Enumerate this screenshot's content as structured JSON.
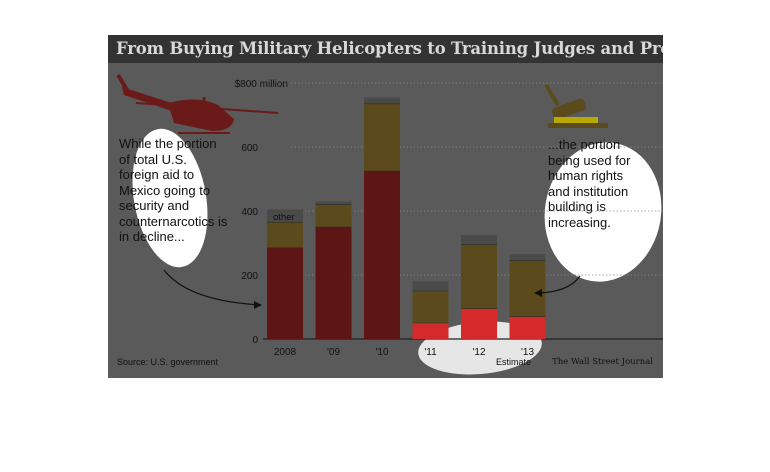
{
  "title": "From Buying Military Helicopters to Training Judges and Prosecutors",
  "annotations": {
    "left": "While the portion of total U.S. foreign aid to Mexico going to security and counternarcotics is in decline...",
    "right": "...the portion being used for human rights and institution building is increasing.",
    "other_label": "other",
    "estimate_label": "Estimate"
  },
  "source": "Source: U.S. government",
  "credit": "The Wall Street Journal",
  "icons": [
    "helicopter-icon",
    "gavel-icon"
  ],
  "colors": {
    "security": "#5e1515",
    "institution": "#5a4a1c",
    "other": "#4a4a4a",
    "security_highlight": "#d42a2a",
    "background": "#5a5a5a",
    "title_bar": "#333333"
  },
  "chart_data": {
    "type": "bar",
    "stacked": true,
    "categories": [
      "2008",
      "'09",
      "'10",
      "'11",
      "'12",
      "'13"
    ],
    "series": [
      {
        "key": "security",
        "values": [
          285,
          350,
          525,
          50,
          95,
          70
        ]
      },
      {
        "key": "institution",
        "values": [
          80,
          70,
          210,
          100,
          200,
          175
        ]
      },
      {
        "key": "other",
        "values": [
          40,
          10,
          20,
          30,
          30,
          20
        ]
      }
    ],
    "yticks": [
      0,
      200,
      400,
      600
    ],
    "ytick_labels": [
      "0",
      "200",
      "400",
      "600"
    ],
    "top_tick": 800,
    "top_tick_label": "$800 million",
    "ylim": [
      0,
      800
    ],
    "grid": true
  }
}
